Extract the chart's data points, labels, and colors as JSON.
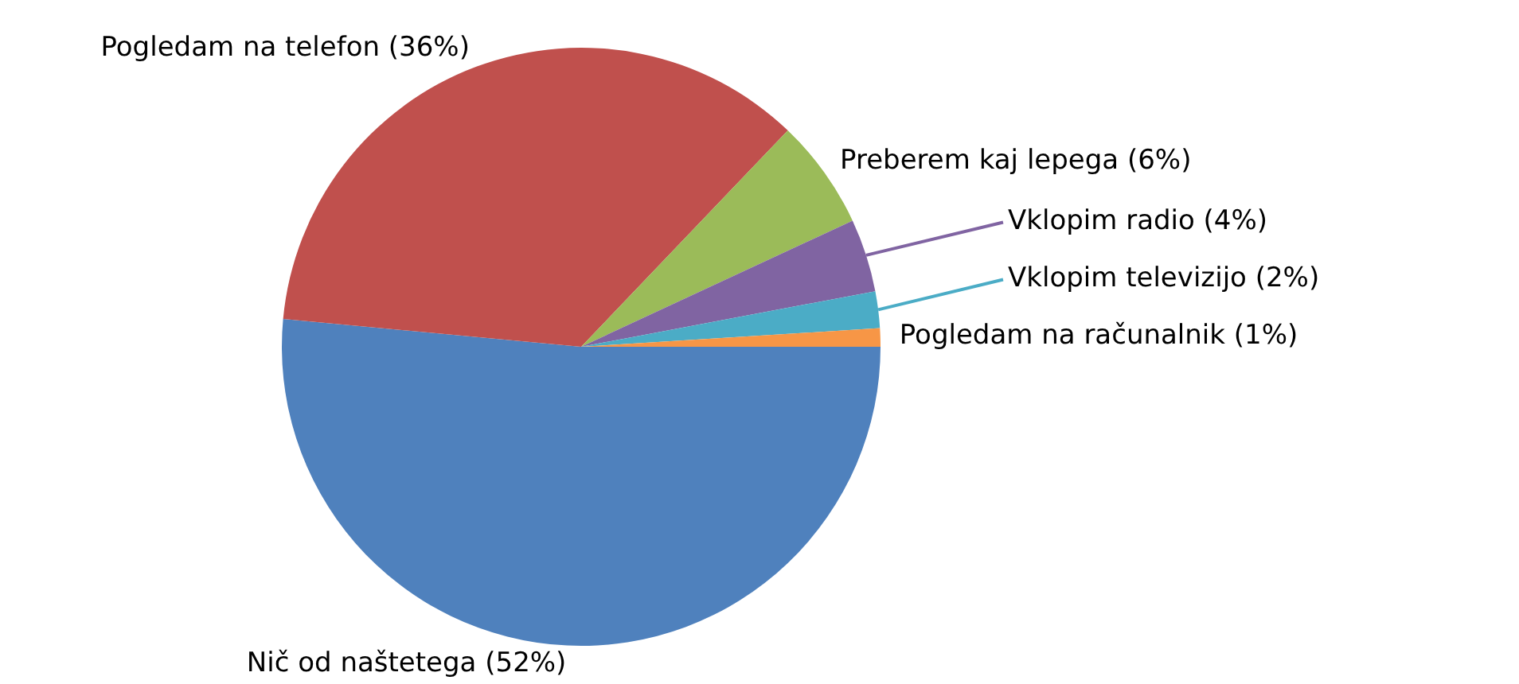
{
  "chart_data": {
    "type": "pie",
    "categories": [
      "Nič od naštetega (52%)",
      "Pogledam na telefon (36%)",
      "Preberem kaj lepega (6%)",
      "Vklopim radio (4%)",
      "Vklopim televizijo (2%)",
      "Pogledam na računalnik (1%)"
    ],
    "values": [
      52,
      36,
      6,
      4,
      2,
      1
    ],
    "colors": [
      "#4f81bd",
      "#c0504d",
      "#9bbb59",
      "#8064a2",
      "#4bacc6",
      "#f79646"
    ],
    "legend": false
  }
}
